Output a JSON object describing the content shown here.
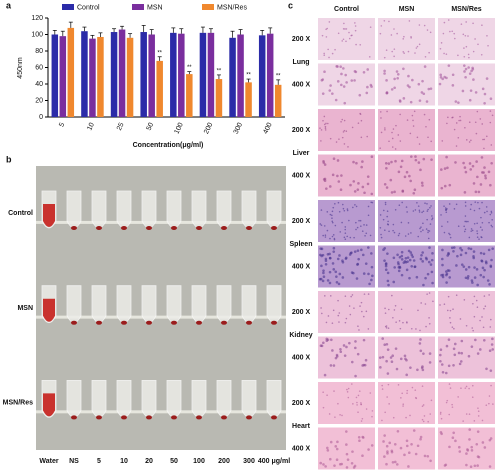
{
  "chart_data": {
    "type": "bar",
    "panel_label": "a",
    "y_label": "450nm",
    "x_label": "Concentration(μg/ml)",
    "categories": [
      "5",
      "10",
      "25",
      "50",
      "100",
      "200",
      "300",
      "400"
    ],
    "series": [
      {
        "name": "Control",
        "color": "#2b2ba8",
        "values": [
          100,
          104,
          103,
          103,
          102,
          102,
          96,
          99
        ],
        "errors": [
          5,
          5,
          4,
          8,
          6,
          7,
          8,
          6
        ]
      },
      {
        "name": "MSN",
        "color": "#7a2e9e",
        "values": [
          98,
          95,
          106,
          100,
          101,
          102,
          100,
          101
        ],
        "errors": [
          6,
          4,
          4,
          6,
          6,
          5,
          6,
          7
        ]
      },
      {
        "name": "MSN/Res",
        "color": "#f0882e",
        "values": [
          108,
          97,
          96,
          68,
          52,
          46,
          42,
          39
        ],
        "errors": [
          7,
          5,
          5,
          5,
          3,
          5,
          4,
          6
        ]
      }
    ],
    "significance": [
      null,
      null,
      null,
      "**",
      "**",
      "**",
      "**",
      "**"
    ],
    "ylim": [
      0,
      120
    ],
    "yticks": [
      0,
      20,
      40,
      60,
      80,
      100,
      120
    ],
    "legend": "top"
  },
  "panel_b": {
    "label": "b",
    "rows": [
      "Control",
      "MSN",
      "MSN/Res"
    ],
    "tubes": [
      "Water",
      "NS",
      "5",
      "10",
      "20",
      "50",
      "100",
      "200",
      "300",
      "400 μg/ml"
    ]
  },
  "panel_c": {
    "label": "c",
    "columns": [
      "Control",
      "MSN",
      "MSN/Res"
    ],
    "organs": [
      {
        "name": "Lung",
        "magnifications": [
          "200 X",
          "400 X"
        ]
      },
      {
        "name": "Liver",
        "magnifications": [
          "200 X",
          "400 X"
        ]
      },
      {
        "name": "Spleen",
        "magnifications": [
          "200 X",
          "400 X"
        ]
      },
      {
        "name": "Kidney",
        "magnifications": [
          "200 X",
          "400 X"
        ]
      },
      {
        "name": "Heart",
        "magnifications": [
          "200 X",
          "400 X"
        ]
      }
    ]
  }
}
